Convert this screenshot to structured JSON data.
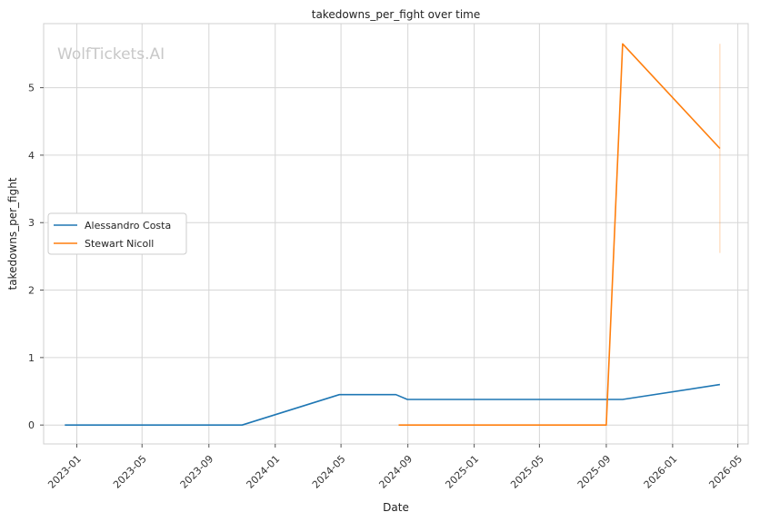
{
  "watermark": "WolfTickets.AI",
  "chart_data": {
    "type": "line",
    "title": "takedowns_per_fight over time",
    "xlabel": "Date",
    "ylabel": "takedowns_per_fight",
    "x_tick_labels": [
      "2023-01",
      "2023-05",
      "2023-09",
      "2024-01",
      "2024-05",
      "2024-09",
      "2025-01",
      "2025-05",
      "2025-09",
      "2026-01",
      "2026-05"
    ],
    "x_ticks": [
      "2023-01-01",
      "2023-05-01",
      "2023-09-01",
      "2024-01-01",
      "2024-05-01",
      "2024-09-01",
      "2025-01-01",
      "2025-05-01",
      "2025-09-01",
      "2026-01-01",
      "2026-05-01"
    ],
    "y_ticks": [
      0,
      1,
      2,
      3,
      4,
      5
    ],
    "xlim": [
      "2022-11-01",
      "2026-05-20"
    ],
    "ylim": [
      -0.28,
      5.95
    ],
    "grid": true,
    "legend_position": "center-left",
    "series": [
      {
        "name": "Alessandro Costa",
        "color": "#1f77b4",
        "points": [
          {
            "x": "2022-12-10",
            "y": 0
          },
          {
            "x": "2023-11-01",
            "y": 0
          },
          {
            "x": "2024-04-28",
            "y": 0.45
          },
          {
            "x": "2024-08-10",
            "y": 0.45
          },
          {
            "x": "2024-08-31",
            "y": 0.38
          },
          {
            "x": "2025-10-01",
            "y": 0.38
          },
          {
            "x": "2026-03-29",
            "y": 0.6
          }
        ]
      },
      {
        "name": "Stewart Nicoll",
        "color": "#ff7f0e",
        "points": [
          {
            "x": "2024-08-15",
            "y": 0
          },
          {
            "x": "2025-09-01",
            "y": 0
          },
          {
            "x": "2025-10-01",
            "y": 5.65
          },
          {
            "x": "2026-03-29",
            "y": 4.1
          }
        ],
        "band": {
          "x": "2026-03-29",
          "y_low": 2.55,
          "y_high": 5.65
        }
      }
    ]
  }
}
